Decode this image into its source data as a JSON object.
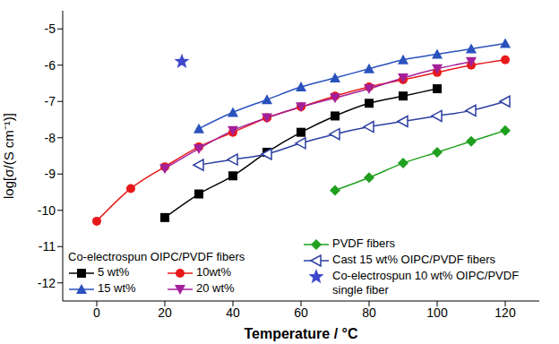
{
  "chart_data": {
    "type": "line",
    "x_label": "Temperature / °C",
    "y_label": "log[σ/(S cm⁻¹)]",
    "legend_title": "Co-electrospun OIPC/PVDF fibers",
    "legend": "bottom",
    "xlim": [
      -10,
      130
    ],
    "xticks": [
      0,
      20,
      40,
      60,
      80,
      100,
      120
    ],
    "ylim": [
      -12.5,
      -4.5
    ],
    "yticks": [
      -12,
      -11,
      -10,
      -9,
      -8,
      -7,
      -6,
      -5
    ],
    "series": [
      {
        "name": "5 wt%",
        "type": "line",
        "color": "#000000",
        "marker": "square",
        "line_style": "solid",
        "x": [
          20,
          30,
          40,
          50,
          60,
          70,
          80,
          90,
          100
        ],
        "values": [
          -10.2,
          -9.55,
          -9.05,
          -8.4,
          -7.85,
          -7.4,
          -7.05,
          -6.85,
          -6.65
        ]
      },
      {
        "name": "10wt%",
        "type": "line",
        "color": "#e8191a",
        "marker": "circle",
        "line_style": "solid",
        "x": [
          0,
          10,
          20,
          30,
          40,
          50,
          60,
          70,
          80,
          90,
          100,
          110,
          120
        ],
        "values": [
          -10.3,
          -9.4,
          -8.8,
          -8.25,
          -7.85,
          -7.45,
          -7.15,
          -6.85,
          -6.6,
          -6.4,
          -6.2,
          -6.0,
          -5.85
        ]
      },
      {
        "name": "15 wt%",
        "type": "line",
        "color": "#2a52be",
        "marker": "triangle",
        "line_style": "solid",
        "x": [
          30,
          40,
          50,
          60,
          70,
          80,
          90,
          100,
          110,
          120
        ],
        "values": [
          -7.75,
          -7.3,
          -6.95,
          -6.6,
          -6.35,
          -6.1,
          -5.85,
          -5.7,
          -5.55,
          -5.4
        ]
      },
      {
        "name": "20 wt%",
        "type": "line",
        "color": "#a4209a",
        "marker": "triangle-down",
        "line_style": "solid",
        "x": [
          20,
          30,
          40,
          50,
          60,
          70,
          80,
          90,
          100,
          110
        ],
        "values": [
          -8.85,
          -8.3,
          -7.8,
          -7.45,
          -7.15,
          -6.9,
          -6.65,
          -6.35,
          -6.1,
          -5.9
        ]
      },
      {
        "name": "PVDF fibers",
        "type": "line",
        "color": "#1fa01f",
        "marker": "diamond",
        "line_style": "solid",
        "x": [
          70,
          80,
          90,
          100,
          110,
          120
        ],
        "values": [
          -9.45,
          -9.1,
          -8.7,
          -8.4,
          -8.1,
          -7.8
        ]
      },
      {
        "name": "Cast 15 wt% OIPC/PVDF fibers",
        "type": "line",
        "color": "#2c3fa0",
        "marker": "triangle-left-open",
        "line_style": "solid",
        "x": [
          30,
          40,
          50,
          60,
          70,
          80,
          90,
          100,
          110,
          120
        ],
        "values": [
          -8.75,
          -8.6,
          -8.45,
          -8.15,
          -7.9,
          -7.7,
          -7.55,
          -7.4,
          -7.25,
          -7.0
        ]
      },
      {
        "name": "Co-electrospun 10 wt% OIPC/PVDF single fiber",
        "type": "scatter",
        "color": "#3f48cc",
        "marker": "star",
        "x": [
          25
        ],
        "values": [
          -5.9
        ]
      }
    ]
  }
}
